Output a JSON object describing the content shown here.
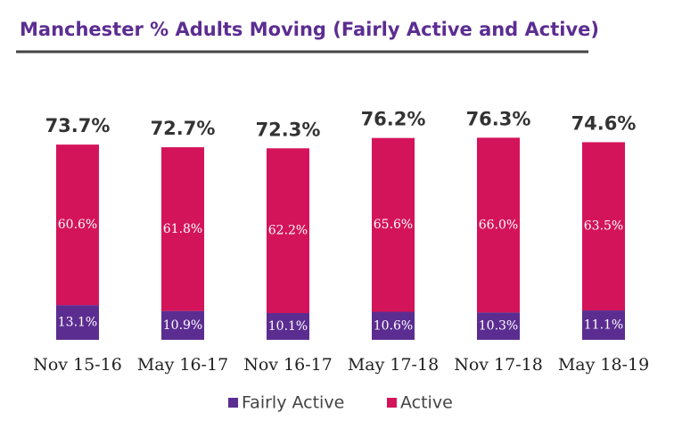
{
  "chart_data": {
    "type": "stacked-bar",
    "title": "Manchester % Adults Moving (Fairly Active and Active)",
    "categories": [
      "Nov 15-16",
      "May 16-17",
      "Nov 16-17",
      "May 17-18",
      "Nov 17-18",
      "May 18-19"
    ],
    "series": [
      {
        "name": "Fairly Active",
        "color": "#5c2d91",
        "values": [
          13.1,
          10.9,
          10.1,
          10.6,
          10.3,
          11.1
        ],
        "value_labels": [
          "13.1%",
          "10.9%",
          "10.1%",
          "10.6%",
          "10.3%",
          "11.1%"
        ]
      },
      {
        "name": "Active",
        "color": "#d4145a",
        "values": [
          60.6,
          61.8,
          62.2,
          65.6,
          66.0,
          63.5
        ],
        "value_labels": [
          "60.6%",
          "61.8%",
          "62.2%",
          "65.6%",
          "66.0%",
          "63.5%"
        ]
      }
    ],
    "totals": [
      73.7,
      72.7,
      72.3,
      76.2,
      76.3,
      74.6
    ],
    "total_labels": [
      "73.7%",
      "72.7%",
      "72.3%",
      "76.2%",
      "76.3%",
      "74.6%"
    ],
    "legend": "bottom"
  }
}
